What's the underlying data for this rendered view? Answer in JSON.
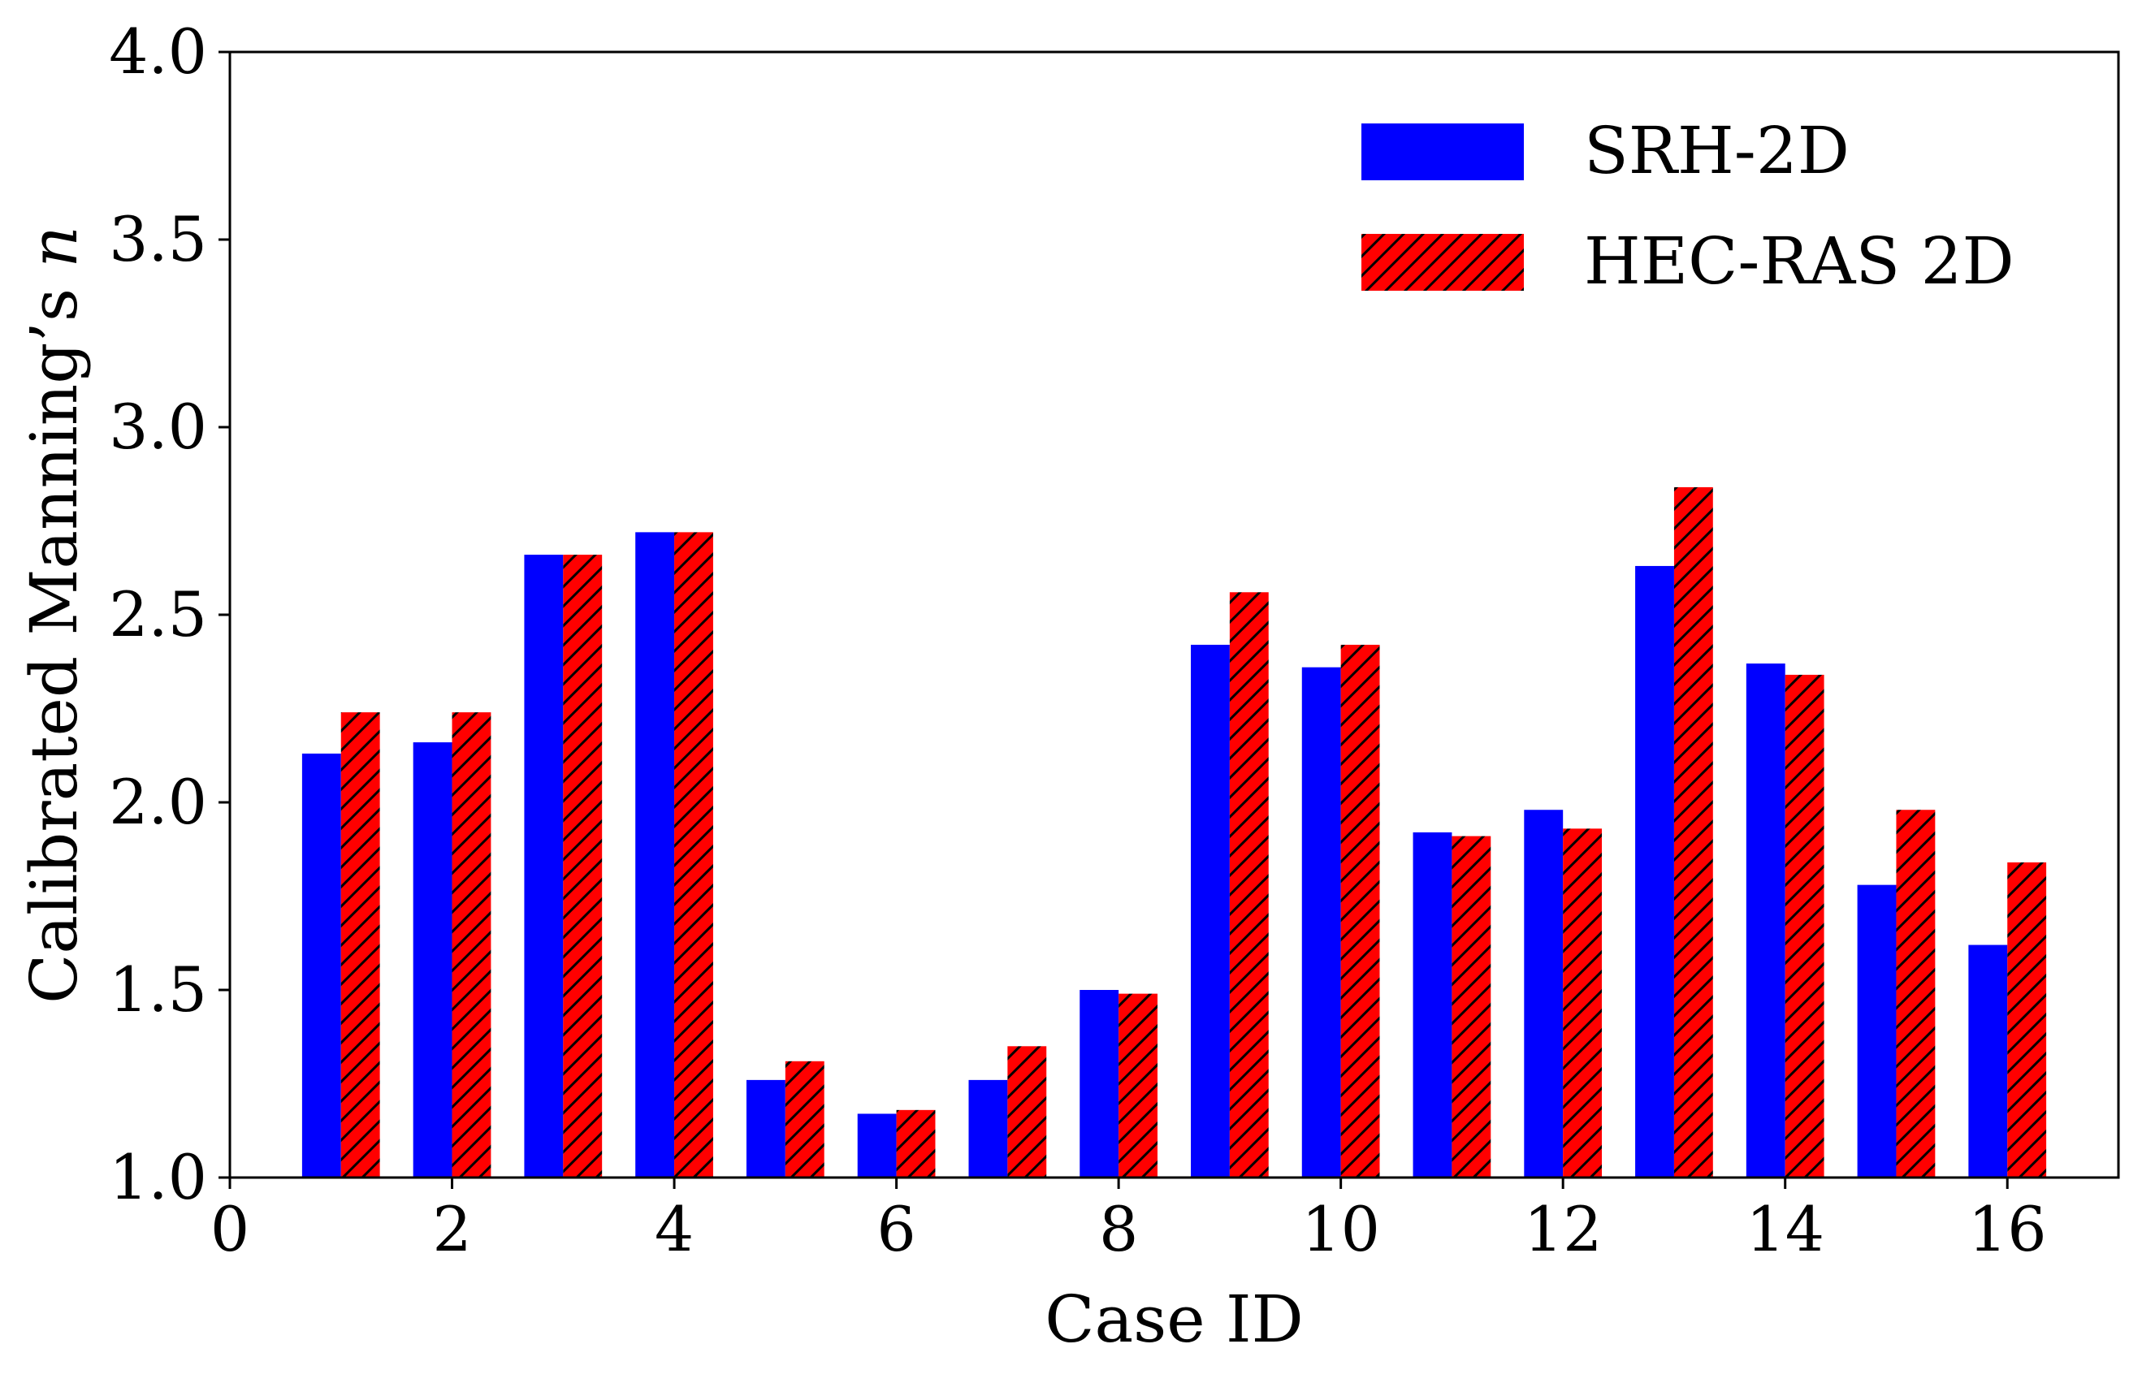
{
  "chart_data": {
    "type": "bar",
    "xlabel": "Case ID",
    "ylabel": "Calibrated Manning’s",
    "ylabel_symbol": "n",
    "xlim": [
      0,
      17
    ],
    "ylim": [
      1.0,
      4.0
    ],
    "x_ticks": [
      0,
      2,
      4,
      6,
      8,
      10,
      12,
      14,
      16
    ],
    "y_ticks": [
      1.0,
      1.5,
      2.0,
      2.5,
      3.0,
      3.5,
      4.0
    ],
    "x_tick_labels": [
      "0",
      "2",
      "4",
      "6",
      "8",
      "10",
      "12",
      "14",
      "16"
    ],
    "y_tick_labels": [
      "1.0",
      "1.5",
      "2.0",
      "2.5",
      "3.0",
      "3.5",
      "4.0"
    ],
    "categories": [
      1,
      2,
      3,
      4,
      5,
      6,
      7,
      8,
      9,
      10,
      11,
      12,
      13,
      14,
      15,
      16
    ],
    "series": [
      {
        "name": "SRH-2D",
        "color": "#0000ff",
        "hatch": "none",
        "values": [
          2.13,
          2.16,
          2.66,
          2.72,
          1.26,
          1.17,
          1.26,
          1.5,
          2.42,
          2.36,
          1.92,
          1.98,
          2.63,
          2.37,
          1.78,
          1.62
        ]
      },
      {
        "name": "HEC-RAS 2D",
        "color": "#ff0000",
        "hatch": "diagonal",
        "values": [
          2.24,
          2.24,
          2.66,
          2.72,
          1.31,
          1.18,
          1.35,
          1.49,
          2.56,
          2.42,
          1.91,
          1.93,
          2.84,
          2.34,
          1.98,
          1.84
        ]
      }
    ],
    "legend_position": "top-right",
    "grid": false
  }
}
